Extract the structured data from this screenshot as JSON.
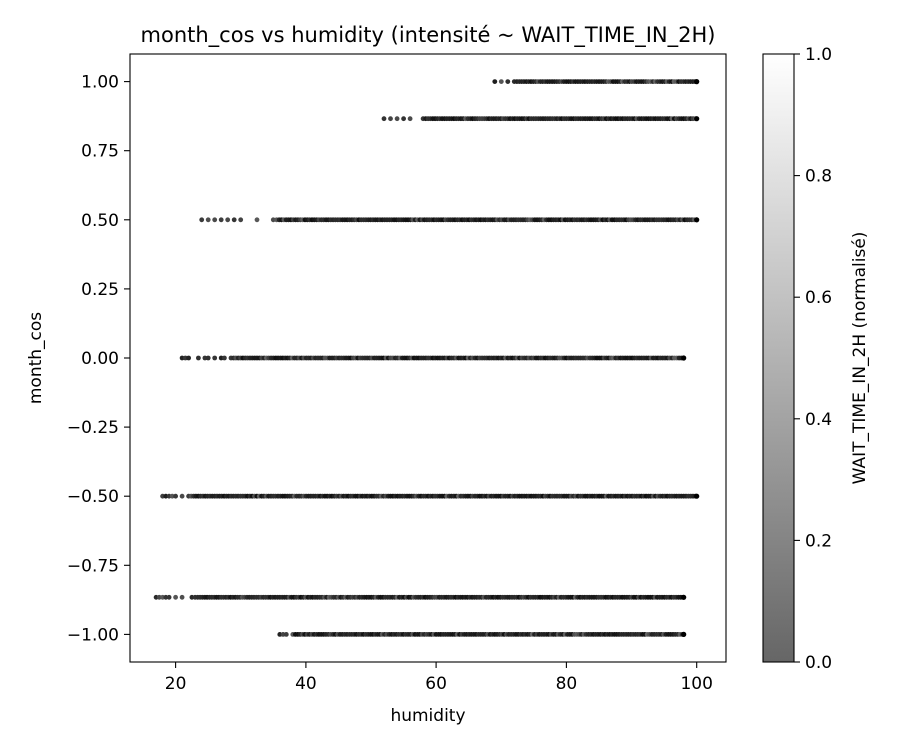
{
  "chart_data": {
    "type": "scatter",
    "title": "month_cos vs humidity (intensité ~ WAIT_TIME_IN_2H)",
    "xlabel": "humidity",
    "ylabel": "month_cos",
    "xlim": [
      13,
      104.5
    ],
    "ylim": [
      -1.1,
      1.1
    ],
    "x_ticks": [
      20,
      40,
      60,
      80,
      100
    ],
    "x_tick_labels": [
      "20",
      "40",
      "60",
      "80",
      "100"
    ],
    "y_ticks": [
      1.0,
      0.75,
      0.5,
      0.25,
      0.0,
      -0.25,
      -0.5,
      -0.75,
      -1.0
    ],
    "y_tick_labels": [
      "1.00",
      "0.75",
      "0.50",
      "0.25",
      "0.00",
      "−0.25",
      "−0.50",
      "−0.75",
      "−1.00"
    ],
    "grid": false,
    "marker_color": "#000000",
    "bands": [
      {
        "y": 1.0,
        "x_min": 69,
        "x_max": 100,
        "sparse_x": [
          69,
          70,
          71,
          72
        ]
      },
      {
        "y": 0.866,
        "x_min": 52,
        "x_max": 100,
        "sparse_x": [
          52,
          53,
          54,
          55,
          56,
          58
        ]
      },
      {
        "y": 0.5,
        "x_min": 24,
        "x_max": 100,
        "sparse_x": [
          24,
          25,
          26,
          27,
          28,
          29,
          30,
          32.5,
          35,
          35.5
        ]
      },
      {
        "y": 0.0,
        "x_min": 21,
        "x_max": 98,
        "sparse_x": [
          21,
          21.5,
          22,
          23.5,
          24.5,
          25,
          26,
          27,
          27.5,
          28.5
        ]
      },
      {
        "y": -0.5,
        "x_min": 18,
        "x_max": 100,
        "sparse_x": [
          18,
          18.5,
          19,
          19.5,
          20,
          21,
          22
        ]
      },
      {
        "y": -0.866,
        "x_min": 17,
        "x_max": 98,
        "sparse_x": [
          17,
          17.5,
          18,
          18.5,
          19,
          20,
          21,
          22.5,
          23
        ]
      },
      {
        "y": -1.0,
        "x_min": 36,
        "x_max": 98,
        "sparse_x": [
          36,
          36.5,
          37,
          38
        ]
      }
    ],
    "colorbar": {
      "label": "WAIT_TIME_IN_2H (normalisé)",
      "range": [
        0.0,
        1.0
      ],
      "ticks": [
        0.0,
        0.2,
        0.4,
        0.6,
        0.8,
        1.0
      ],
      "tick_labels": [
        "0.0",
        "0.2",
        "0.4",
        "0.6",
        "0.8",
        "1.0"
      ],
      "colormap": "gray",
      "alpha": 0.6
    }
  }
}
